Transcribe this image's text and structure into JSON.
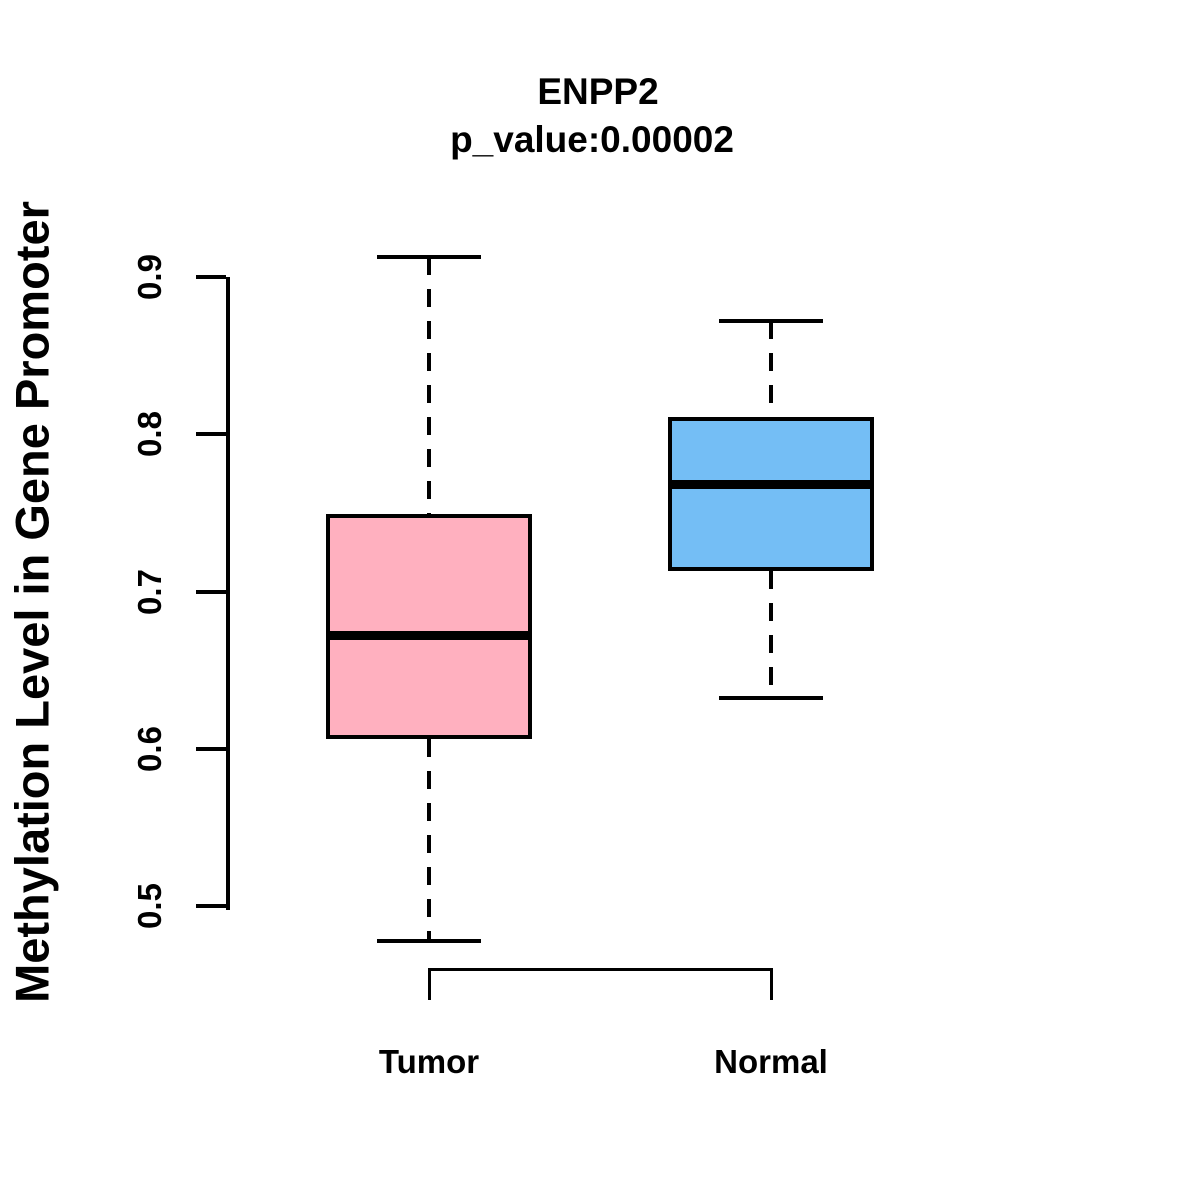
{
  "title": {
    "line1": "ENPP2",
    "line2": "p_value:0.00002"
  },
  "y_axis": {
    "label": "Methylation Level in Gene Promoter",
    "tick_labels": [
      "0.5",
      "0.6",
      "0.7",
      "0.8",
      "0.9"
    ],
    "tick_values": [
      0.5,
      0.6,
      0.7,
      0.8,
      0.9
    ]
  },
  "x_axis": {
    "labels": [
      "Tumor",
      "Normal"
    ]
  },
  "chart_data": {
    "type": "boxplot",
    "title": "ENPP2",
    "subtitle": "p_value:0.00002",
    "ylabel": "Methylation Level in Gene Promoter",
    "xlabel": "",
    "categories": [
      "Tumor",
      "Normal"
    ],
    "ylim": [
      0.45,
      0.93
    ],
    "y_ticks": [
      0.5,
      0.6,
      0.7,
      0.8,
      0.9
    ],
    "grid": false,
    "legend": "none",
    "series": [
      {
        "name": "Tumor",
        "fill_color": "#FFB0BF",
        "whisker_low": 0.478,
        "q1": 0.606,
        "median": 0.672,
        "q3": 0.749,
        "whisker_high": 0.913
      },
      {
        "name": "Normal",
        "fill_color": "#74BEF5",
        "whisker_low": 0.632,
        "q1": 0.713,
        "median": 0.768,
        "q3": 0.811,
        "whisker_high": 0.872
      }
    ],
    "colors": {
      "line": "#000000",
      "background": "#FFFFFF",
      "tumor_fill": "#FFB0BF",
      "normal_fill": "#74BEF5"
    }
  }
}
